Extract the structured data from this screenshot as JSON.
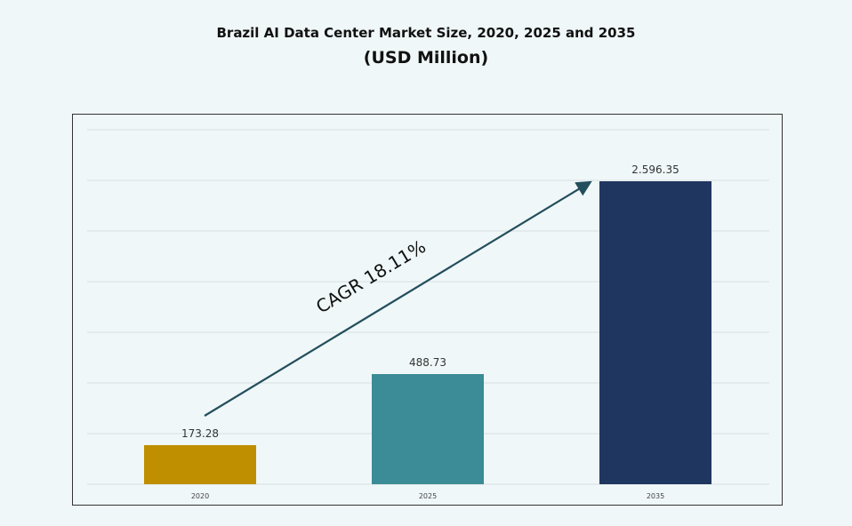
{
  "title": "Brazil AI Data Center Market Size, 2020, 2025 and 2035",
  "subtitle": "(USD Million)",
  "chart_data": {
    "type": "bar",
    "title": "Brazil AI Data Center Market Size, 2020, 2025 and 2035",
    "subtitle": "(USD Million)",
    "categories": [
      "2020",
      "2025",
      "2035"
    ],
    "values": [
      173.28,
      488.73,
      2596.35
    ],
    "data_labels": [
      "173.28",
      "488.73",
      "2.596.35"
    ],
    "colors": [
      "#c08f00",
      "#3b8c96",
      "#1f3660"
    ],
    "annotation": "CAGR 18.11%",
    "arrow_color": "#234e5c",
    "grid": true,
    "legend": "none"
  }
}
